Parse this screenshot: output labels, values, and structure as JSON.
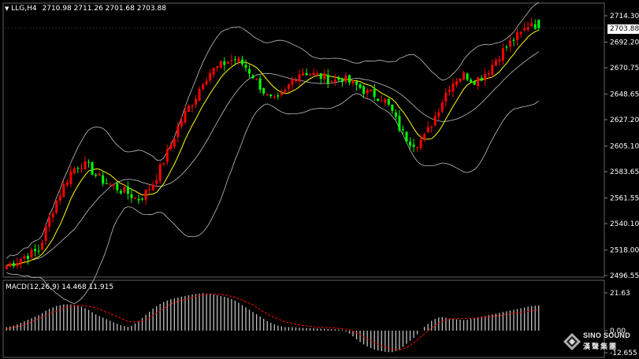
{
  "header": {
    "symbol_timeframe": "LLG,H4",
    "ohlc": "2710.98 2711.26 2701.68 2703.88",
    "dropdown_icon": "triangle-down-icon"
  },
  "price_tag": "2703.88",
  "macd": {
    "label": "MACD(12,26,9) 14.468 11.915",
    "axis": {
      "top": "21.63",
      "zero": "0.00",
      "bottom": "-12.655"
    }
  },
  "branding": {
    "name": "SINO SOUND",
    "cn": "漢聲集團",
    "icon": "diamond-logo-icon"
  },
  "colors": {
    "bull": "#ff0000",
    "bear": "#00ff00",
    "ma": "#ffff00",
    "bands": "#c0c0c0",
    "macd_hist": "#c0c0c0",
    "macd_signal": "#ff0000",
    "axis_text": "#ffffff"
  },
  "chart_data": [
    {
      "type": "candlestick",
      "title": "LLG,H4",
      "ylim": [
        2496.55,
        2714.3
      ],
      "yticks": [
        "2714.30",
        "2692.20",
        "2670.75",
        "2648.65",
        "2627.20",
        "2605.10",
        "2583.65",
        "2561.55",
        "2540.10",
        "2518.00",
        "2496.55"
      ],
      "indicators": [
        "Bollinger Bands (upper, middle, lower)",
        "moving average (yellow)"
      ],
      "close_path": [
        2505,
        2508,
        2512,
        2515,
        2518,
        2540,
        2558,
        2572,
        2585,
        2590,
        2588,
        2580,
        2575,
        2572,
        2568,
        2565,
        2560,
        2566,
        2575,
        2590,
        2605,
        2622,
        2635,
        2645,
        2660,
        2668,
        2672,
        2676,
        2678,
        2673,
        2665,
        2655,
        2645,
        2642,
        2650,
        2662,
        2668,
        2666,
        2664,
        2662,
        2660,
        2662,
        2658,
        2655,
        2650,
        2648,
        2645,
        2635,
        2620,
        2610,
        2607,
        2612,
        2625,
        2640,
        2655,
        2662,
        2665,
        2660,
        2663,
        2670,
        2680,
        2688,
        2695,
        2700,
        2710,
        2703.88
      ],
      "last": {
        "open": 2710.98,
        "high": 2711.26,
        "low": 2701.68,
        "close": 2703.88
      }
    },
    {
      "type": "bar",
      "title": "MACD(12,26,9)",
      "main": 14.468,
      "signal": 11.915,
      "ylim": [
        -12.655,
        21.63
      ],
      "histogram_path": [
        2,
        3,
        5,
        7,
        9,
        12,
        14,
        15,
        15,
        14,
        12,
        9,
        7,
        5,
        3,
        2,
        5,
        9,
        13,
        16,
        18,
        19,
        20,
        21,
        21.5,
        21,
        20,
        19,
        17,
        14,
        11,
        8,
        5,
        3,
        2,
        2,
        1.5,
        1.5,
        1.2,
        1,
        0.8,
        0.5,
        -2,
        -6,
        -9,
        -11,
        -12,
        -12.5,
        -11,
        -7,
        -3,
        2,
        6,
        8,
        7,
        6.5,
        6,
        7,
        8,
        9,
        10,
        11,
        12,
        13,
        14,
        14.468
      ],
      "signal_path": [
        1,
        2,
        3,
        5,
        7,
        9,
        11,
        13,
        14,
        14.5,
        14,
        13,
        11,
        9,
        7,
        5,
        5,
        6,
        9,
        12,
        15,
        17,
        18,
        19.5,
        20.5,
        21,
        20.8,
        20.2,
        19,
        17,
        15,
        12,
        9,
        7,
        5,
        4,
        3,
        2.5,
        2,
        1.8,
        1.5,
        1.2,
        0.5,
        -2,
        -4.5,
        -7,
        -9,
        -10.5,
        -11,
        -9.5,
        -6,
        -2,
        2,
        5,
        6.5,
        7,
        7,
        7,
        7.5,
        8,
        8.5,
        9.2,
        10,
        10.6,
        11.3,
        11.915
      ]
    }
  ]
}
